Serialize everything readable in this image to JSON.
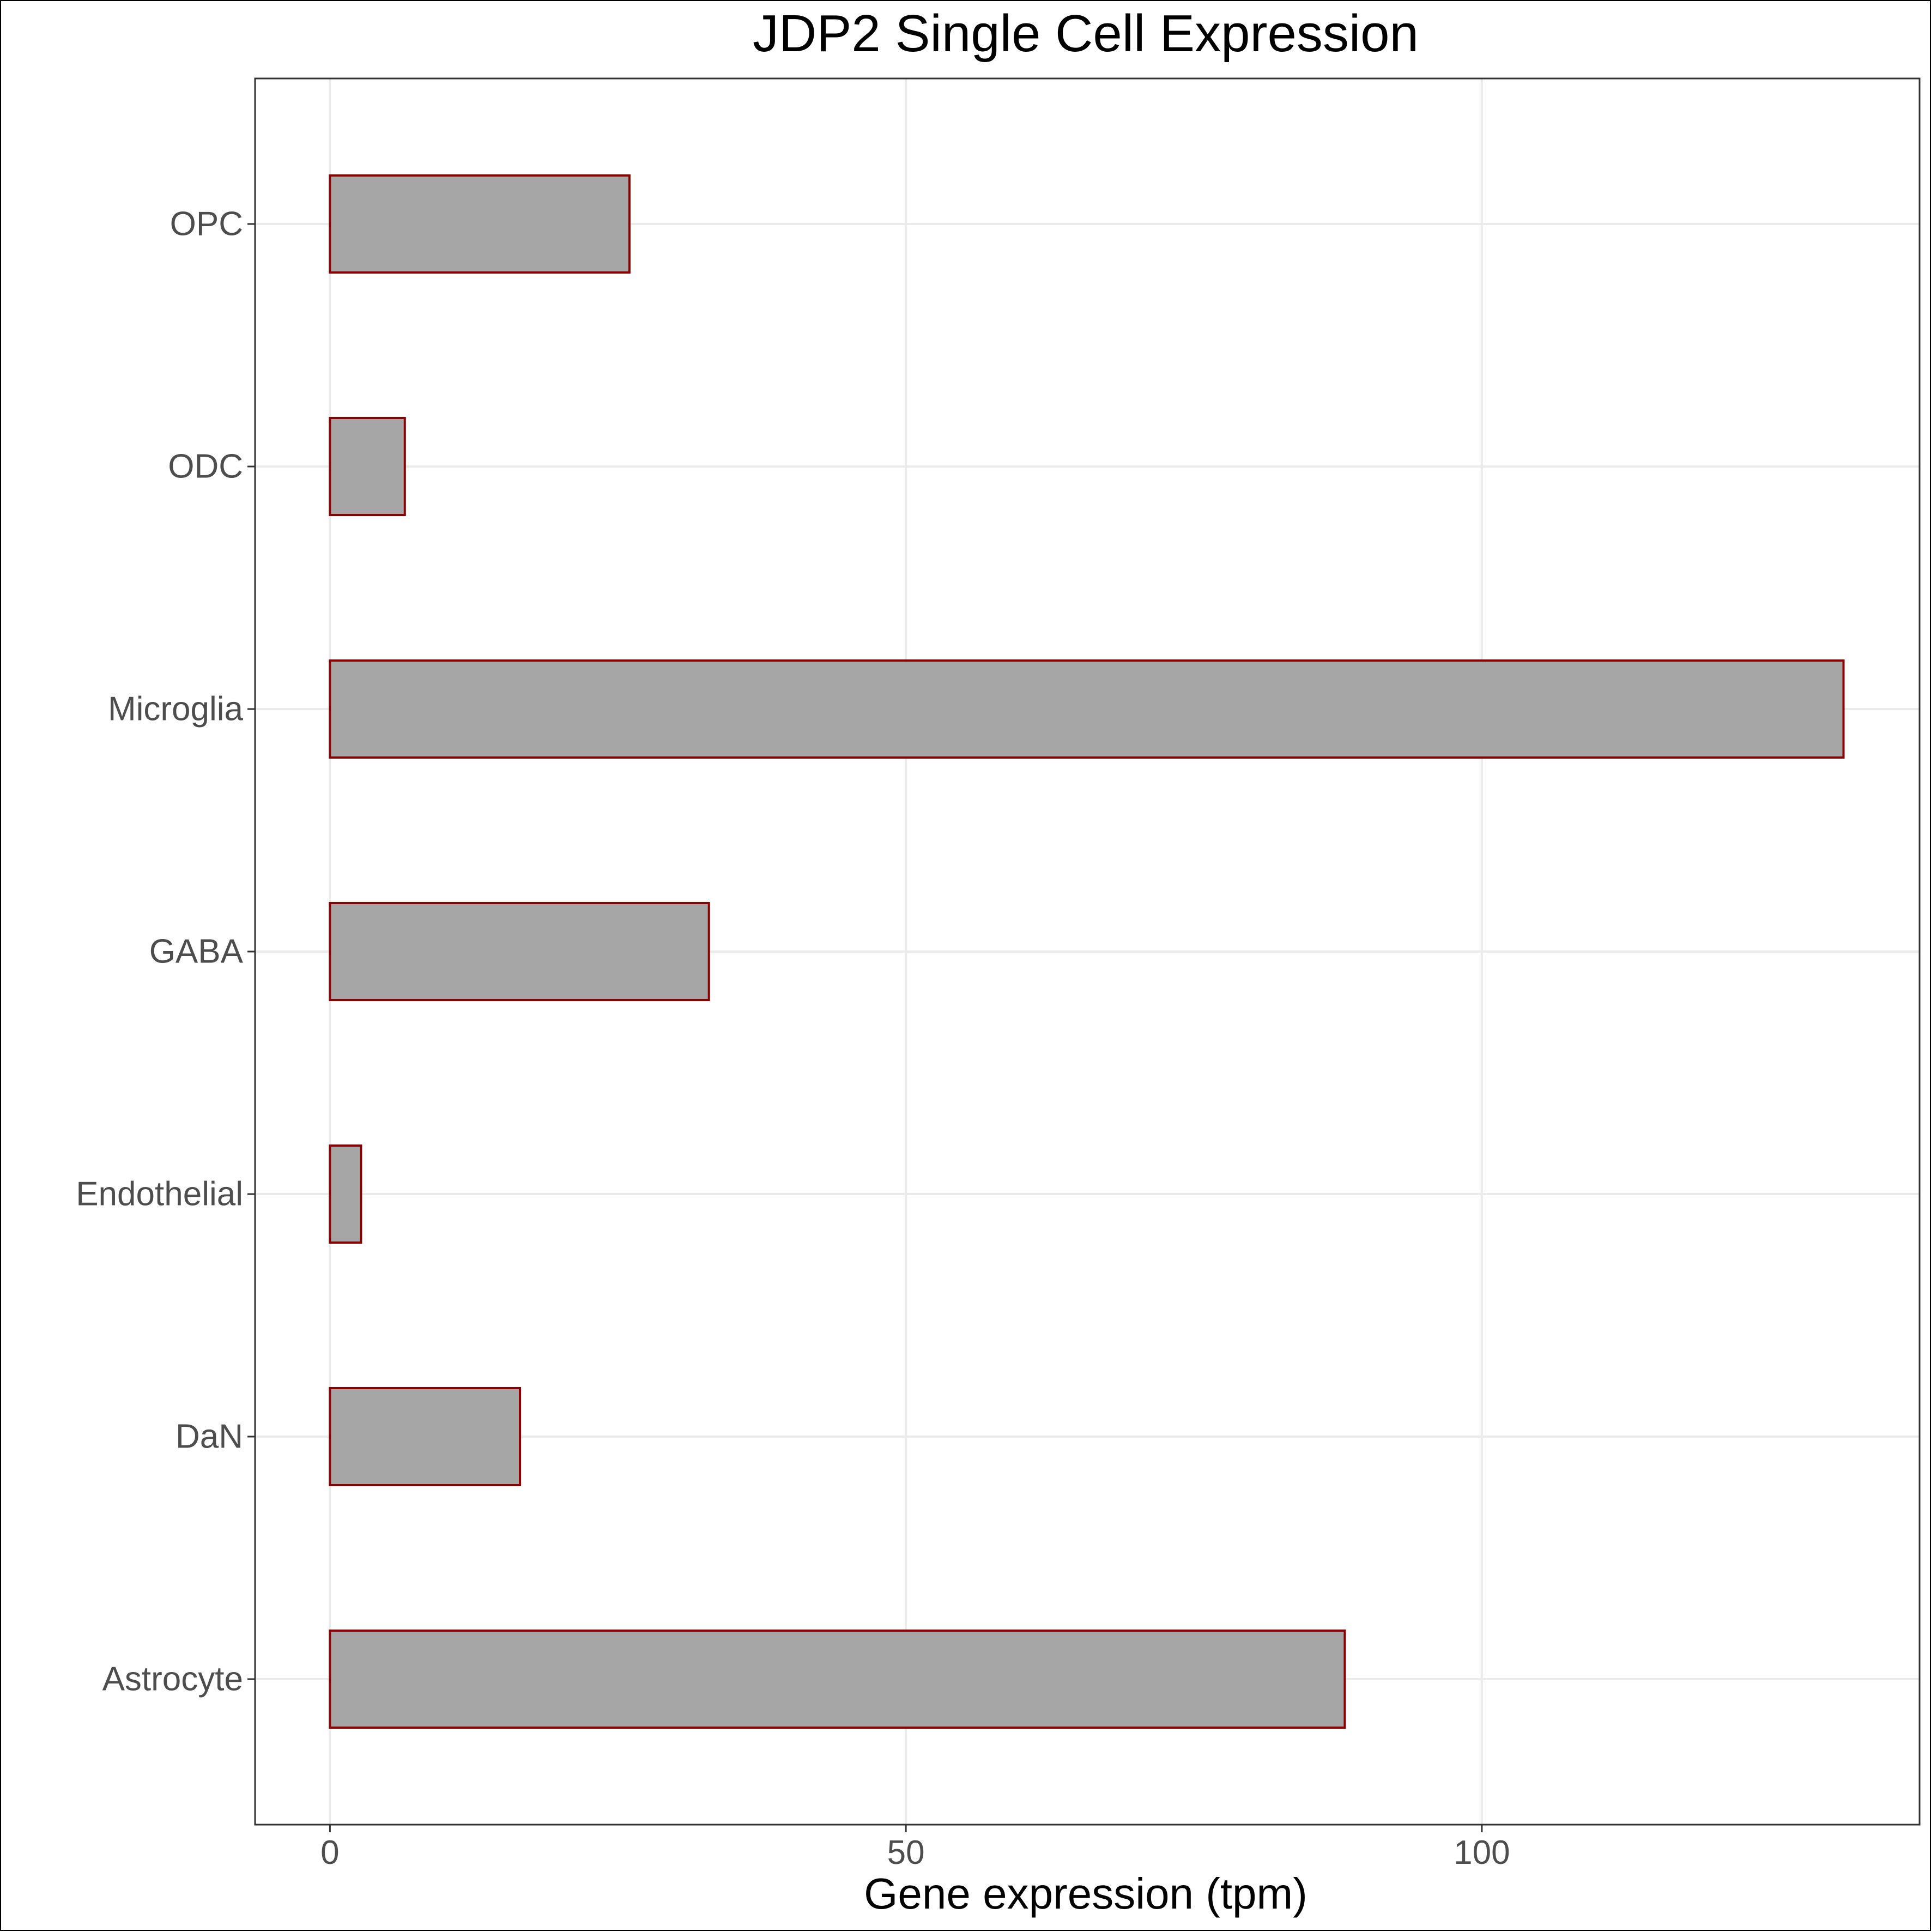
{
  "chart_data": {
    "type": "bar",
    "orientation": "horizontal",
    "title": "JDP2 Single Cell Expression",
    "xlabel": "Gene expression (tpm)",
    "ylabel": "",
    "categories": [
      "Astrocyte",
      "DaN",
      "Endothelial",
      "GABA",
      "Microglia",
      "ODC",
      "OPC"
    ],
    "values": [
      88.1,
      16.5,
      2.7,
      32.9,
      131.4,
      6.5,
      26.0
    ],
    "xlim": [
      -6.5,
      138.0
    ],
    "xticks": [
      0,
      50,
      100
    ],
    "xtick_labels": [
      "0",
      "50",
      "100"
    ],
    "grid": true,
    "bar_fill": "#a6a6a6",
    "bar_stroke": "#8b0000",
    "grid_color": "#ebebeb"
  }
}
